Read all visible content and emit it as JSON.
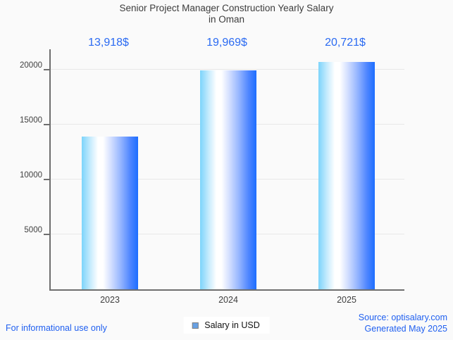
{
  "title": {
    "line1": "Senior Project Manager Construction Yearly Salary",
    "line2": "in Oman"
  },
  "chart_data": {
    "type": "bar",
    "title": "Senior Project Manager Construction Yearly Salary in Oman",
    "categories": [
      "2023",
      "2024",
      "2025"
    ],
    "values": [
      13918,
      19969,
      20721
    ],
    "value_labels": [
      "13,918$",
      "19,969$",
      "20,721$"
    ],
    "xlabel": "",
    "ylabel": "",
    "ylim": [
      0,
      22000
    ],
    "yticks": [
      5000,
      10000,
      15000,
      20000
    ],
    "grid": true,
    "legend_position": "bottom-center",
    "legend": [
      {
        "label": "Salary in USD",
        "swatch_color": "#67a1e5"
      }
    ],
    "bar_gradient": [
      "#7cd4fb",
      "#ffffff",
      "#1d6eff"
    ]
  },
  "legend": {
    "salary_label": "Salary in USD"
  },
  "footer": {
    "left_note": "For informational use only",
    "source": "Source: optisalary.com",
    "generated": "Generated May 2025"
  },
  "colors": {
    "background": "#fafafa",
    "title_text": "#3c3c3c",
    "accent_blue": "#2a6af2",
    "footer_blue": "#1f5ff0",
    "axis": "#6e6e6e",
    "gridline": "#e8e8e8",
    "legend_swatch": "#67a1e5"
  }
}
